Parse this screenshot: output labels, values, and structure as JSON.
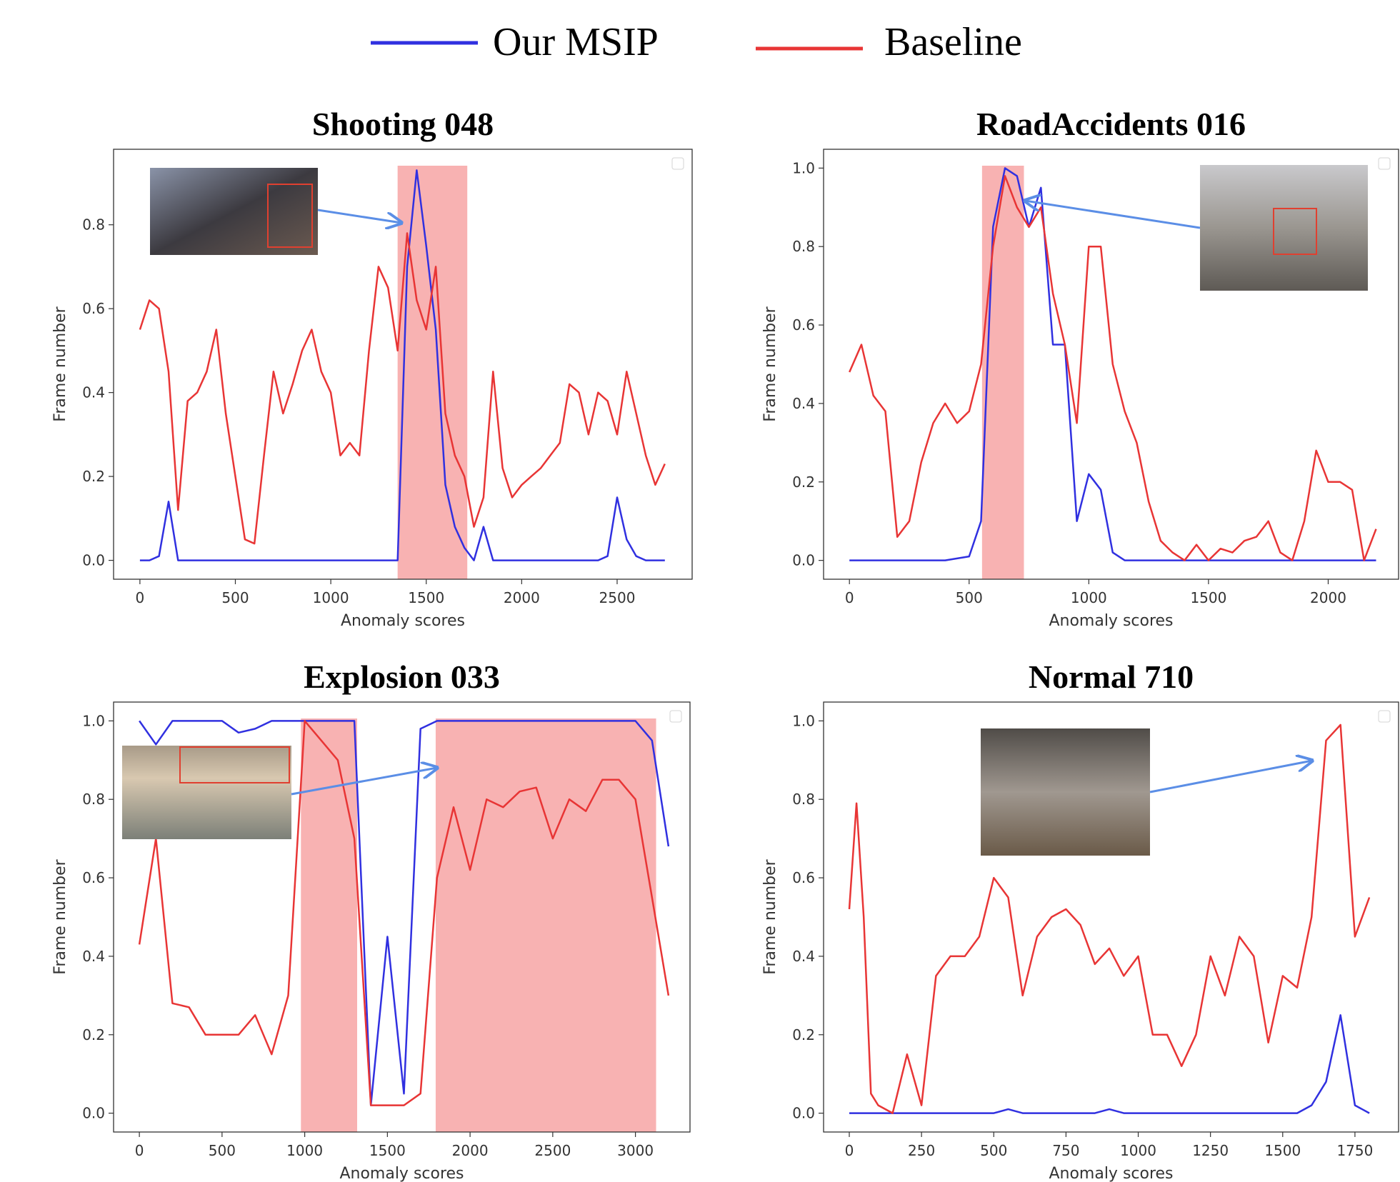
{
  "chart_data": [
    {
      "type": "line",
      "title": "Shooting 048",
      "xlabel": "Anomaly scores",
      "ylabel": "Frame number",
      "x": [
        0,
        50,
        100,
        150,
        200,
        250,
        300,
        350,
        400,
        450,
        500,
        550,
        600,
        650,
        700,
        750,
        800,
        850,
        900,
        950,
        1000,
        1050,
        1100,
        1150,
        1200,
        1250,
        1300,
        1350,
        1400,
        1450,
        1500,
        1550,
        1600,
        1650,
        1700,
        1750,
        1800,
        1850,
        1900,
        1950,
        2000,
        2050,
        2100,
        2150,
        2200,
        2250,
        2300,
        2350,
        2400,
        2450,
        2500,
        2550,
        2600,
        2650,
        2700,
        2750
      ],
      "series": [
        {
          "name": "Our MSIP",
          "color": "#3030e0",
          "values": [
            0,
            0,
            0.01,
            0.14,
            0,
            0,
            0,
            0,
            0,
            0,
            0,
            0,
            0,
            0,
            0,
            0,
            0,
            0,
            0,
            0,
            0,
            0,
            0,
            0,
            0,
            0,
            0,
            0,
            0.7,
            0.93,
            0.75,
            0.55,
            0.18,
            0.08,
            0.03,
            0,
            0.08,
            0,
            0,
            0,
            0,
            0,
            0,
            0,
            0,
            0,
            0,
            0,
            0,
            0.01,
            0.15,
            0.05,
            0.01,
            0,
            0,
            0
          ]
        },
        {
          "name": "Baseline",
          "color": "#e83535",
          "values": [
            0.55,
            0.62,
            0.6,
            0.45,
            0.12,
            0.38,
            0.4,
            0.45,
            0.55,
            0.35,
            0.2,
            0.05,
            0.04,
            0.25,
            0.45,
            0.35,
            0.42,
            0.5,
            0.55,
            0.45,
            0.4,
            0.25,
            0.28,
            0.25,
            0.5,
            0.7,
            0.65,
            0.5,
            0.78,
            0.62,
            0.55,
            0.7,
            0.35,
            0.25,
            0.2,
            0.08,
            0.15,
            0.45,
            0.22,
            0.15,
            0.18,
            0.2,
            0.22,
            0.25,
            0.28,
            0.42,
            0.4,
            0.3,
            0.4,
            0.38,
            0.3,
            0.45,
            0.35,
            0.25,
            0.18,
            0.23
          ]
        }
      ],
      "highlights": [
        [
          1350,
          1715
        ]
      ],
      "xlim": [
        -138,
        2893
      ],
      "ylim": [
        -0.045,
        0.98
      ],
      "xticks": [
        0,
        500,
        1000,
        1500,
        2000,
        2500
      ],
      "yticks": [
        {
          "value": 0,
          "label": "0.0"
        },
        0.2,
        0.4,
        0.6,
        0.8
      ]
    },
    {
      "type": "line",
      "title": "RoadAccidents 016",
      "xlabel": "Anomaly scores",
      "ylabel": "Frame number",
      "x": [
        0,
        50,
        100,
        150,
        200,
        250,
        300,
        350,
        400,
        450,
        500,
        550,
        600,
        650,
        700,
        750,
        800,
        850,
        900,
        950,
        1000,
        1050,
        1100,
        1150,
        1200,
        1250,
        1300,
        1350,
        1400,
        1450,
        1500,
        1550,
        1600,
        1650,
        1700,
        1750,
        1800,
        1850,
        1900,
        1950,
        2000,
        2050,
        2100,
        2150,
        2200
      ],
      "series": [
        {
          "color": "#3030e0",
          "values": [
            0,
            0,
            0,
            0,
            0,
            0,
            0,
            0,
            0,
            0.005,
            0.01,
            0.1,
            0.85,
            1.0,
            0.98,
            0.85,
            0.95,
            0.55,
            0.55,
            0.1,
            0.22,
            0.18,
            0.02,
            0,
            0,
            0,
            0,
            0,
            0,
            0,
            0,
            0,
            0,
            0,
            0,
            0,
            0,
            0,
            0,
            0,
            0,
            0,
            0,
            0,
            0
          ]
        },
        {
          "color": "#e83535",
          "values": [
            0.48,
            0.55,
            0.42,
            0.38,
            0.06,
            0.1,
            0.25,
            0.35,
            0.4,
            0.35,
            0.38,
            0.5,
            0.8,
            0.98,
            0.9,
            0.85,
            0.9,
            0.68,
            0.55,
            0.35,
            0.8,
            0.8,
            0.5,
            0.38,
            0.3,
            0.15,
            0.05,
            0.02,
            0,
            0.04,
            0,
            0.03,
            0.02,
            0.05,
            0.06,
            0.1,
            0.02,
            0,
            0.1,
            0.28,
            0.2,
            0.2,
            0.18,
            0,
            0.08
          ]
        }
      ],
      "highlights": [
        [
          554,
          729
        ]
      ],
      "xlim": [
        -108,
        2294
      ],
      "ylim": [
        -0.048,
        1.048
      ],
      "xticks": [
        0,
        500,
        1000,
        1500,
        2000
      ],
      "yticks": [
        {
          "value": 0,
          "label": "0.0"
        },
        0.2,
        0.4,
        0.6,
        0.8,
        {
          "value": 1,
          "label": "1.0"
        }
      ]
    },
    {
      "type": "line",
      "title": "Explosion 033",
      "xlabel": "Anomaly scores",
      "ylabel": "Frame number",
      "x": [
        0,
        100,
        200,
        300,
        400,
        500,
        600,
        700,
        800,
        900,
        1000,
        1100,
        1200,
        1300,
        1400,
        1500,
        1600,
        1700,
        1800,
        1900,
        2000,
        2100,
        2200,
        2300,
        2400,
        2500,
        2600,
        2700,
        2800,
        2900,
        3000,
        3100,
        3200
      ],
      "series": [
        {
          "color": "#3030e0",
          "values": [
            1.0,
            0.94,
            1.0,
            1.0,
            1.0,
            1.0,
            0.97,
            0.98,
            1.0,
            1.0,
            1.0,
            1.0,
            1.0,
            1.0,
            0.02,
            0.45,
            0.05,
            0.98,
            1.0,
            1.0,
            1.0,
            1.0,
            1.0,
            1.0,
            1.0,
            1.0,
            1.0,
            1.0,
            1.0,
            1.0,
            1.0,
            0.95,
            0.68
          ]
        },
        {
          "color": "#e83535",
          "values": [
            0.43,
            0.7,
            0.28,
            0.27,
            0.2,
            0.2,
            0.2,
            0.25,
            0.15,
            0.3,
            1.0,
            0.95,
            0.9,
            0.7,
            0.02,
            0.02,
            0.02,
            0.05,
            0.6,
            0.78,
            0.62,
            0.8,
            0.78,
            0.82,
            0.83,
            0.7,
            0.8,
            0.77,
            0.85,
            0.85,
            0.8,
            0.55,
            0.3
          ]
        }
      ],
      "highlights": [
        [
          977,
          1317
        ],
        [
          1792,
          3125
        ]
      ],
      "xlim": [
        -156,
        3330
      ],
      "ylim": [
        -0.048,
        1.048
      ],
      "xticks": [
        0,
        500,
        1000,
        1500,
        2000,
        2500,
        3000
      ],
      "yticks": [
        {
          "value": 0,
          "label": "0.0"
        },
        0.2,
        0.4,
        0.6,
        0.8,
        {
          "value": 1,
          "label": "1.0"
        }
      ]
    },
    {
      "type": "line",
      "title": "Normal 710",
      "xlabel": "Anomaly scores",
      "ylabel": "Frame number",
      "x": [
        0,
        25,
        50,
        75,
        100,
        150,
        200,
        250,
        300,
        350,
        400,
        450,
        500,
        550,
        600,
        650,
        700,
        750,
        800,
        850,
        900,
        950,
        1000,
        1050,
        1100,
        1150,
        1200,
        1250,
        1300,
        1350,
        1400,
        1450,
        1500,
        1550,
        1600,
        1650,
        1700,
        1750,
        1800
      ],
      "series": [
        {
          "color": "#3030e0",
          "values": [
            0,
            0,
            0,
            0,
            0,
            0,
            0,
            0,
            0,
            0,
            0,
            0,
            0,
            0.01,
            0,
            0,
            0,
            0,
            0,
            0,
            0.01,
            0,
            0,
            0,
            0,
            0,
            0,
            0,
            0,
            0,
            0,
            0,
            0,
            0,
            0.02,
            0.08,
            0.25,
            0.02,
            0
          ]
        },
        {
          "color": "#e83535",
          "values": [
            0.52,
            0.79,
            0.5,
            0.05,
            0.02,
            0,
            0.15,
            0.02,
            0.35,
            0.4,
            0.4,
            0.45,
            0.6,
            0.55,
            0.3,
            0.45,
            0.5,
            0.52,
            0.48,
            0.38,
            0.42,
            0.35,
            0.4,
            0.2,
            0.2,
            0.12,
            0.2,
            0.4,
            0.3,
            0.45,
            0.4,
            0.18,
            0.35,
            0.32,
            0.5,
            0.95,
            0.99,
            0.45,
            0.55
          ]
        }
      ],
      "highlights": [],
      "xlim": [
        -89,
        1901
      ],
      "ylim": [
        -0.048,
        1.048
      ],
      "xticks": [
        0,
        250,
        500,
        750,
        1000,
        1250,
        1500,
        1750
      ],
      "yticks": [
        {
          "value": 0,
          "label": "0.0"
        },
        0.2,
        0.4,
        0.6,
        0.8,
        {
          "value": 1,
          "label": "1.0"
        }
      ]
    }
  ]
}
